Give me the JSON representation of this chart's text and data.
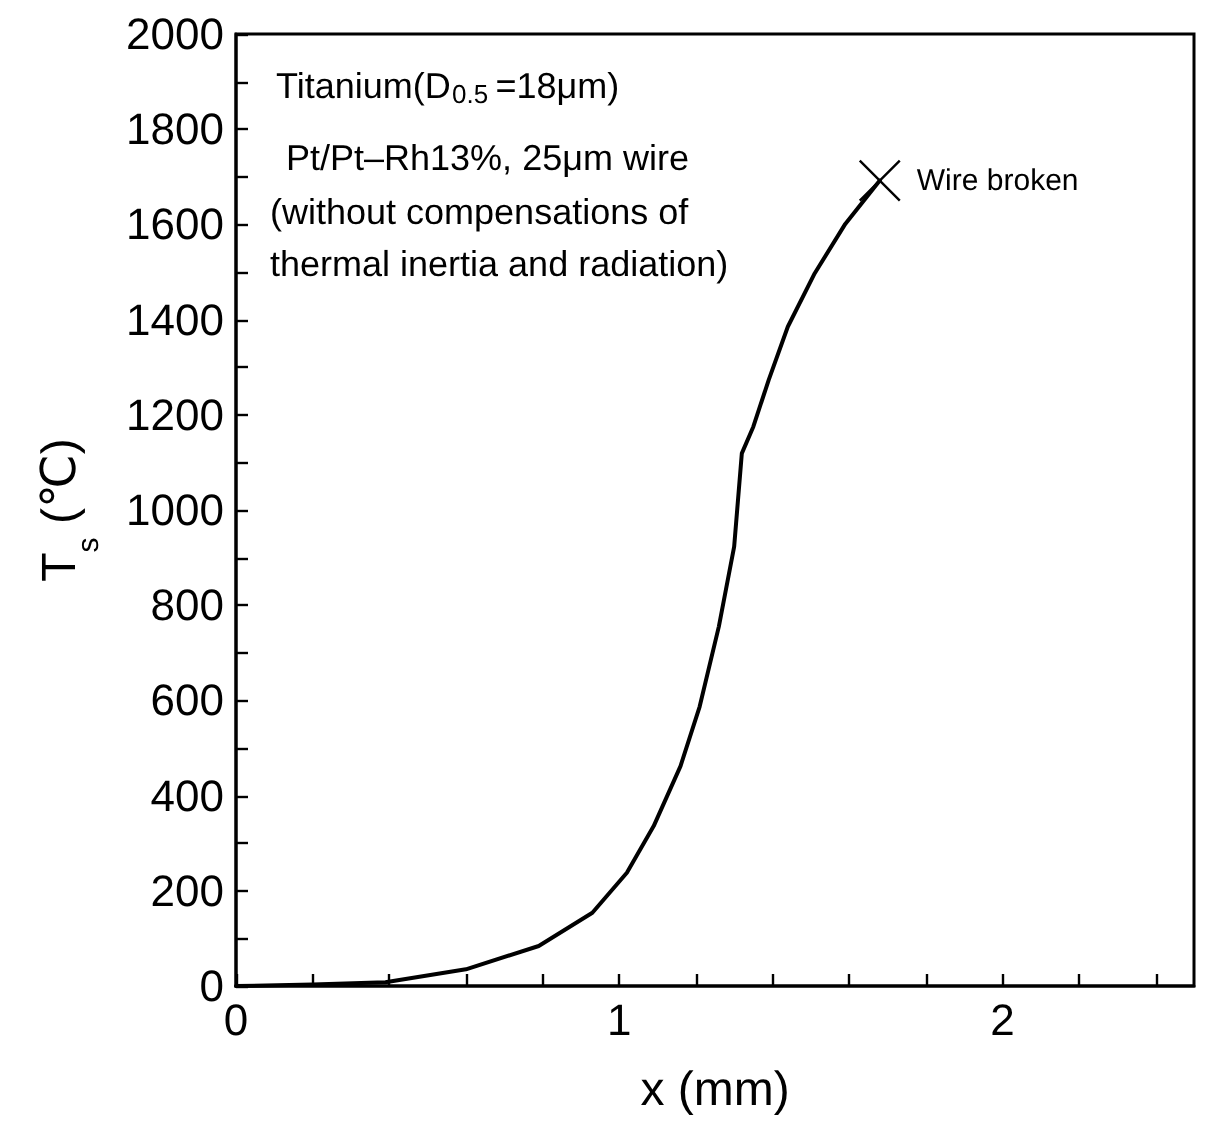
{
  "chart_data": {
    "type": "line",
    "xlabel": "x (mm)",
    "ylabel": "T$_{s}$ (℃)",
    "annotations": [
      "Titanium(D$_{0.5}$=18μm)",
      "Pt/Pt–Rh13%, 25μm wire",
      "(without compensations of thermal inertia and radiation)",
      {
        "text": "Wire broken",
        "x": 1.68,
        "y": 1692
      }
    ],
    "series": [
      {
        "color": "#000000",
        "x": [
          0,
          0.2,
          0.39,
          0.6,
          0.79,
          0.93,
          1.02,
          1.09,
          1.16,
          1.21,
          1.26,
          1.3,
          1.32,
          1.35,
          1.39,
          1.44,
          1.51,
          1.59,
          1.68
        ],
        "values": [
          0,
          3,
          8,
          35,
          84,
          154,
          238,
          336,
          462,
          587,
          755,
          923,
          1119,
          1175,
          1273,
          1385,
          1497,
          1601,
          1692
        ]
      }
    ],
    "xlim": [
      0,
      2.5
    ],
    "xticks": [
      0,
      {
        "value": 0.2,
        "label": null
      },
      {
        "value": 0.4,
        "label": null
      },
      {
        "value": 0.6,
        "label": null
      },
      {
        "value": 0.8,
        "label": null
      },
      1,
      {
        "value": 1.2,
        "label": null
      },
      {
        "value": 1.4,
        "label": null
      },
      {
        "value": 1.6,
        "label": null
      },
      {
        "value": 1.8,
        "label": null
      },
      2,
      {
        "value": 2.2,
        "label": null
      },
      {
        "value": 2.4,
        "label": null
      }
    ],
    "ylim": [
      0,
      2000
    ],
    "yticks": [
      0,
      {
        "value": 100,
        "label": null
      },
      200,
      {
        "value": 300,
        "label": null
      },
      400,
      {
        "value": 500,
        "label": null
      },
      600,
      {
        "value": 700,
        "label": null
      },
      800,
      {
        "value": 900,
        "label": null
      },
      1000,
      {
        "value": 1100,
        "label": null
      },
      1200,
      {
        "value": 1300,
        "label": null
      },
      1400,
      {
        "value": 1500,
        "label": null
      },
      1600,
      {
        "value": 1700,
        "label": null
      },
      1800,
      {
        "value": 1900,
        "label": null
      },
      2000
    ],
    "grid": false,
    "marker": "none",
    "line_style": "solid"
  }
}
